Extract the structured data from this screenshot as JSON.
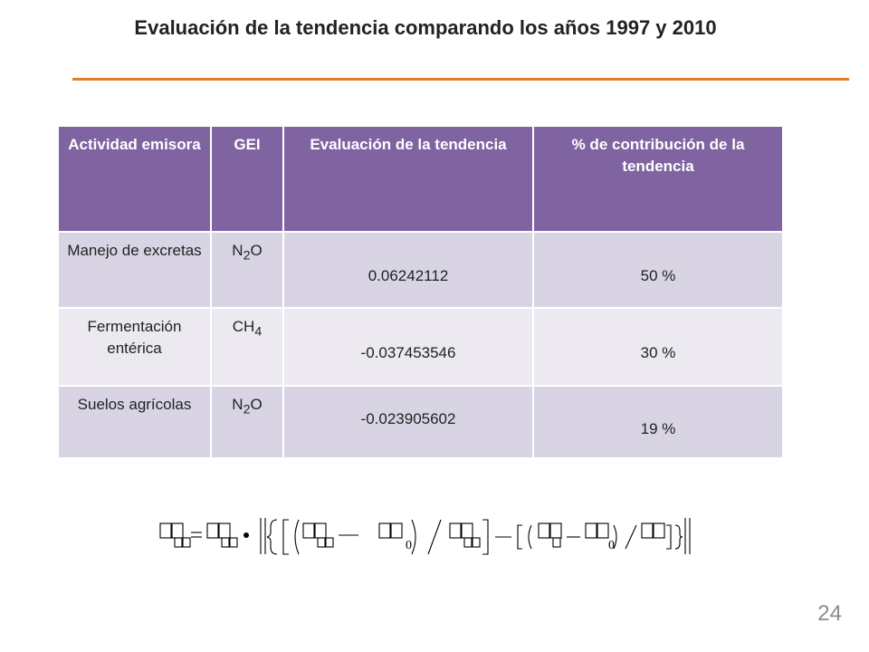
{
  "slide": {
    "title": "Evaluación de la tendencia comparando los años 1997 y 2010",
    "page_number": "24",
    "accent_color": "#e07d2a",
    "header_color": "#8064a2"
  },
  "table": {
    "headers": [
      "Actividad emisora",
      "GEI",
      "Evaluación de la tendencia",
      "% de contribución de la tendencia"
    ],
    "rows": [
      {
        "activity": "Manejo de excretas",
        "gas_base": "N",
        "gas_sub": "2",
        "gas_tail": "O",
        "trend": "0.06242112",
        "contribution": "50 %"
      },
      {
        "activity": "Fermentación entérica",
        "gas_base": "CH",
        "gas_sub": "4",
        "gas_tail": "",
        "trend": "-0.037453546",
        "contribution": "30 %"
      },
      {
        "activity": "Suelos agrícolas",
        "gas_base": "N",
        "gas_sub": "2",
        "gas_tail": "O",
        "trend": "-0.023905602",
        "contribution": "19 %"
      }
    ]
  },
  "formula": {
    "sub_zero": "0"
  }
}
